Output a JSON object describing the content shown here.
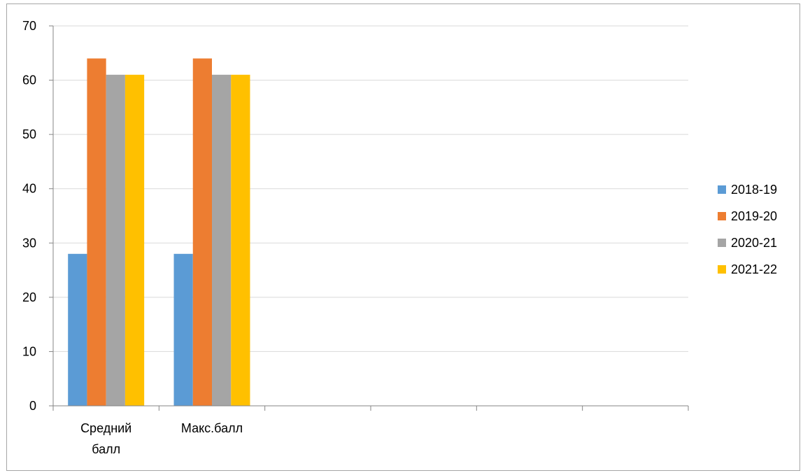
{
  "chart_data": {
    "type": "bar",
    "title": "",
    "xlabel": "",
    "ylabel": "",
    "categories": [
      [
        "Средний",
        "балл"
      ],
      [
        "Макс.балл"
      ],
      [
        ""
      ],
      [
        ""
      ],
      [
        ""
      ],
      [
        ""
      ]
    ],
    "series": [
      {
        "name": "2018-19",
        "color": "#5b9bd5",
        "values": [
          28,
          28,
          null,
          null,
          null,
          null
        ]
      },
      {
        "name": "2019-20",
        "color": "#ed7d31",
        "values": [
          64,
          64,
          null,
          null,
          null,
          null
        ]
      },
      {
        "name": "2020-21",
        "color": "#a5a5a5",
        "values": [
          61,
          61,
          null,
          null,
          null,
          null
        ]
      },
      {
        "name": "2021-22",
        "color": "#ffc000",
        "values": [
          61,
          61,
          null,
          null,
          null,
          null
        ]
      }
    ],
    "ylim": [
      0,
      70
    ],
    "yticks": [
      "0",
      "10",
      "20",
      "30",
      "40",
      "50",
      "60",
      "70"
    ],
    "grid": true,
    "legend_position": "right"
  }
}
